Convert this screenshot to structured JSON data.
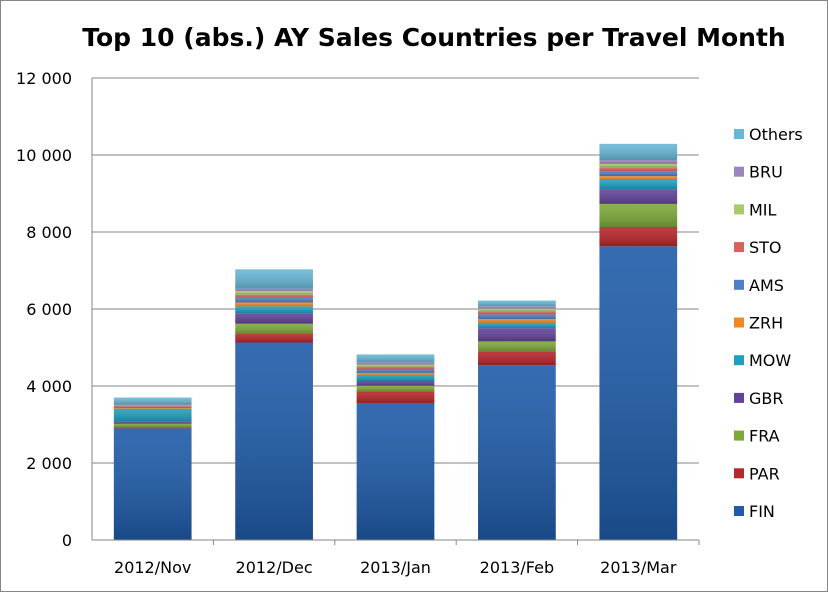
{
  "chart_data": {
    "type": "bar",
    "stacked": true,
    "title": "Top 10 (abs.) AY Sales Countries per Travel Month",
    "xlabel": "",
    "ylabel": "",
    "ylim": [
      0,
      12000
    ],
    "yticks": [
      0,
      2000,
      4000,
      6000,
      8000,
      10000,
      12000
    ],
    "ytick_labels": [
      "0",
      "2 000",
      "4 000",
      "6 000",
      "8 000",
      "10 000",
      "12 000"
    ],
    "grid": true,
    "legend_position": "right",
    "categories": [
      "2012/Nov",
      "2012/Dec",
      "2013/Jan",
      "2013/Feb",
      "2013/Mar"
    ],
    "series": [
      {
        "name": "FIN",
        "color": "#1F5BA8",
        "values": [
          2900,
          5130,
          3560,
          4540,
          7630
        ]
      },
      {
        "name": "PAR",
        "color": "#B7262A",
        "values": [
          30,
          220,
          300,
          360,
          500
        ]
      },
      {
        "name": "FRA",
        "color": "#7DA83A",
        "values": [
          90,
          270,
          150,
          260,
          600
        ]
      },
      {
        "name": "GBR",
        "color": "#62439A",
        "values": [
          50,
          270,
          120,
          340,
          380
        ]
      },
      {
        "name": "MOW",
        "color": "#1E9FBF",
        "values": [
          340,
          180,
          160,
          140,
          240
        ]
      },
      {
        "name": "ZRH",
        "color": "#F08A1F",
        "values": [
          20,
          100,
          50,
          100,
          100
        ]
      },
      {
        "name": "AMS",
        "color": "#4F7EC2",
        "values": [
          30,
          120,
          90,
          120,
          130
        ]
      },
      {
        "name": "STO",
        "color": "#D9625F",
        "values": [
          20,
          80,
          70,
          80,
          100
        ]
      },
      {
        "name": "MIL",
        "color": "#A8CB6C",
        "values": [
          20,
          100,
          60,
          70,
          90
        ]
      },
      {
        "name": "BRU",
        "color": "#9C84BF",
        "values": [
          20,
          60,
          60,
          60,
          100
        ]
      },
      {
        "name": "Others",
        "color": "#69B7D6",
        "values": [
          180,
          500,
          200,
          150,
          420
        ]
      }
    ]
  }
}
